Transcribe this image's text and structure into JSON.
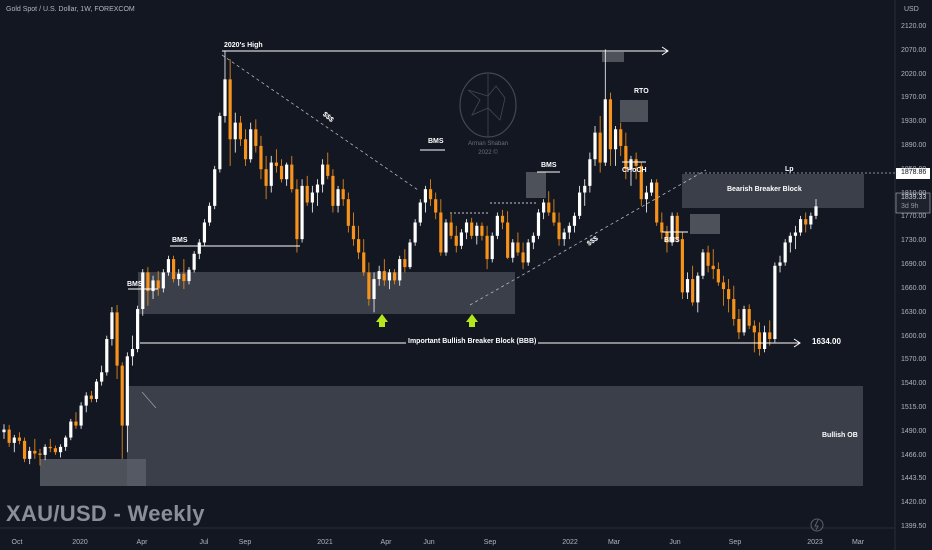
{
  "header": {
    "title": "Gold Spot / U.S. Dollar, 1W, FOREXCOM"
  },
  "watermark": "XAU/USD - Weekly",
  "axis": {
    "currency": "USD",
    "y_ticks": [
      "2120.00",
      "2070.00",
      "2020.00",
      "1970.00",
      "1930.00",
      "1890.00",
      "1850.00",
      "1810.00",
      "1770.00",
      "1730.00",
      "1690.00",
      "1660.00",
      "1630.00",
      "1600.00",
      "1570.00",
      "1540.00",
      "1515.00",
      "1490.00",
      "1466.00",
      "1443.50",
      "1420.00",
      "1399.50"
    ],
    "x_ticks": [
      "Oct",
      "2020",
      "Apr",
      "Jul",
      "Sep",
      "2021",
      "Apr",
      "Jun",
      "Sep",
      "2022",
      "Mar",
      "Jun",
      "Sep",
      "2023",
      "Mar"
    ]
  },
  "price_labels": {
    "level": "1878.86",
    "last": "1839.33",
    "countdown": "3d 9h"
  },
  "annotations": {
    "high_2020": "2020's High",
    "bms": "BMS",
    "sss": "$$$",
    "rto": "RTO",
    "choch": "CHoCH",
    "lp": "Lp",
    "bearish_block": "Bearish Breaker Block",
    "bullish_block": "Important Bullish Breaker Block (BBB)",
    "level_1634": "1634.00",
    "bullish_ob": "Bullish OB"
  },
  "logo": {
    "name": "Arman Shaban",
    "year": "2022 ©"
  },
  "colors": {
    "bull": "#ffffff",
    "bear": "#f7931a",
    "background": "#131722",
    "zone": "#4a4e58"
  },
  "chart_data": {
    "type": "candlestick",
    "title": "Gold Spot / U.S. Dollar, 1W, FOREXCOM",
    "symbol": "XAU/USD",
    "timeframe": "Weekly",
    "ylim": [
      1399.5,
      2120
    ],
    "last_price": 1839.33,
    "horizontal_levels": [
      1878.86,
      1634.0
    ],
    "series": [
      {
        "name": "",
        "ohlc": [
          [
            1500,
            1512,
            1490,
            1504
          ],
          [
            1504,
            1511,
            1478,
            1484
          ],
          [
            1484,
            1496,
            1470,
            1492
          ],
          [
            1492,
            1500,
            1482,
            1487
          ],
          [
            1487,
            1492,
            1455,
            1460
          ],
          [
            1460,
            1478,
            1452,
            1472
          ],
          [
            1472,
            1490,
            1460,
            1468
          ],
          [
            1468,
            1475,
            1450,
            1466
          ],
          [
            1466,
            1482,
            1458,
            1478
          ],
          [
            1478,
            1490,
            1470,
            1476
          ],
          [
            1476,
            1480,
            1466,
            1470
          ],
          [
            1470,
            1482,
            1462,
            1478
          ],
          [
            1478,
            1495,
            1472,
            1492
          ],
          [
            1492,
            1520,
            1488,
            1516
          ],
          [
            1516,
            1530,
            1505,
            1510
          ],
          [
            1510,
            1545,
            1505,
            1540
          ],
          [
            1540,
            1560,
            1530,
            1555
          ],
          [
            1555,
            1562,
            1545,
            1550
          ],
          [
            1550,
            1580,
            1545,
            1576
          ],
          [
            1576,
            1600,
            1570,
            1590
          ],
          [
            1590,
            1645,
            1585,
            1640
          ],
          [
            1640,
            1688,
            1630,
            1680
          ],
          [
            1680,
            1691,
            1580,
            1600
          ],
          [
            1600,
            1605,
            1460,
            1510
          ],
          [
            1510,
            1620,
            1470,
            1614
          ],
          [
            1614,
            1645,
            1600,
            1625
          ],
          [
            1625,
            1690,
            1620,
            1685
          ],
          [
            1685,
            1745,
            1675,
            1740
          ],
          [
            1740,
            1748,
            1690,
            1712
          ],
          [
            1712,
            1735,
            1700,
            1728
          ],
          [
            1728,
            1742,
            1705,
            1716
          ],
          [
            1716,
            1745,
            1710,
            1740
          ],
          [
            1740,
            1765,
            1735,
            1760
          ],
          [
            1760,
            1765,
            1725,
            1730
          ],
          [
            1730,
            1745,
            1720,
            1738
          ],
          [
            1738,
            1760,
            1715,
            1727
          ],
          [
            1727,
            1748,
            1722,
            1744
          ],
          [
            1744,
            1772,
            1740,
            1768
          ],
          [
            1768,
            1790,
            1760,
            1785
          ],
          [
            1785,
            1820,
            1780,
            1815
          ],
          [
            1815,
            1845,
            1810,
            1840
          ],
          [
            1840,
            1900,
            1835,
            1895
          ],
          [
            1895,
            1980,
            1890,
            1975
          ],
          [
            1975,
            2072,
            1965,
            2030
          ],
          [
            2030,
            2060,
            1900,
            1940
          ],
          [
            1940,
            1980,
            1920,
            1965
          ],
          [
            1965,
            1975,
            1930,
            1940
          ],
          [
            1940,
            1955,
            1900,
            1910
          ],
          [
            1910,
            1965,
            1905,
            1955
          ],
          [
            1955,
            1970,
            1920,
            1930
          ],
          [
            1930,
            1945,
            1880,
            1895
          ],
          [
            1895,
            1915,
            1850,
            1870
          ],
          [
            1870,
            1915,
            1860,
            1905
          ],
          [
            1905,
            1925,
            1890,
            1900
          ],
          [
            1900,
            1910,
            1875,
            1880
          ],
          [
            1880,
            1905,
            1870,
            1902
          ],
          [
            1902,
            1915,
            1860,
            1865
          ],
          [
            1865,
            1880,
            1770,
            1790
          ],
          [
            1790,
            1880,
            1785,
            1870
          ],
          [
            1870,
            1885,
            1840,
            1845
          ],
          [
            1845,
            1870,
            1830,
            1860
          ],
          [
            1860,
            1880,
            1840,
            1872
          ],
          [
            1872,
            1910,
            1860,
            1902
          ],
          [
            1902,
            1920,
            1880,
            1885
          ],
          [
            1885,
            1895,
            1830,
            1840
          ],
          [
            1840,
            1870,
            1830,
            1865
          ],
          [
            1865,
            1880,
            1840,
            1850
          ],
          [
            1850,
            1860,
            1800,
            1810
          ],
          [
            1810,
            1830,
            1780,
            1790
          ],
          [
            1790,
            1810,
            1760,
            1770
          ],
          [
            1770,
            1790,
            1735,
            1740
          ],
          [
            1740,
            1755,
            1690,
            1700
          ],
          [
            1700,
            1740,
            1680,
            1730
          ],
          [
            1730,
            1750,
            1720,
            1742
          ],
          [
            1742,
            1760,
            1720,
            1728
          ],
          [
            1728,
            1745,
            1715,
            1740
          ],
          [
            1740,
            1745,
            1722,
            1728
          ],
          [
            1728,
            1765,
            1720,
            1760
          ],
          [
            1760,
            1775,
            1740,
            1748
          ],
          [
            1748,
            1790,
            1745,
            1785
          ],
          [
            1785,
            1820,
            1780,
            1815
          ],
          [
            1815,
            1850,
            1810,
            1845
          ],
          [
            1845,
            1870,
            1830,
            1865
          ],
          [
            1865,
            1880,
            1840,
            1850
          ],
          [
            1850,
            1860,
            1820,
            1830
          ],
          [
            1830,
            1850,
            1765,
            1770
          ],
          [
            1770,
            1820,
            1765,
            1815
          ],
          [
            1815,
            1828,
            1790,
            1795
          ],
          [
            1795,
            1810,
            1770,
            1780
          ],
          [
            1780,
            1805,
            1775,
            1800
          ],
          [
            1800,
            1820,
            1790,
            1815
          ],
          [
            1815,
            1822,
            1790,
            1795
          ],
          [
            1795,
            1815,
            1782,
            1810
          ],
          [
            1810,
            1815,
            1788,
            1795
          ],
          [
            1795,
            1810,
            1745,
            1760
          ],
          [
            1760,
            1800,
            1755,
            1795
          ],
          [
            1795,
            1830,
            1790,
            1825
          ],
          [
            1825,
            1834,
            1805,
            1815
          ],
          [
            1815,
            1832,
            1760,
            1762
          ],
          [
            1762,
            1790,
            1755,
            1785
          ],
          [
            1785,
            1800,
            1765,
            1770
          ],
          [
            1770,
            1785,
            1745,
            1755
          ],
          [
            1755,
            1790,
            1750,
            1785
          ],
          [
            1785,
            1800,
            1775,
            1795
          ],
          [
            1795,
            1835,
            1790,
            1830
          ],
          [
            1830,
            1850,
            1820,
            1845
          ],
          [
            1845,
            1862,
            1825,
            1830
          ],
          [
            1830,
            1850,
            1810,
            1815
          ],
          [
            1815,
            1830,
            1780,
            1790
          ],
          [
            1790,
            1806,
            1780,
            1800
          ],
          [
            1800,
            1815,
            1790,
            1810
          ],
          [
            1810,
            1830,
            1800,
            1825
          ],
          [
            1825,
            1870,
            1820,
            1860
          ],
          [
            1860,
            1880,
            1840,
            1870
          ],
          [
            1870,
            1920,
            1860,
            1910
          ],
          [
            1910,
            1960,
            1900,
            1950
          ],
          [
            1950,
            1975,
            1890,
            1905
          ],
          [
            1905,
            2075,
            1900,
            2000
          ],
          [
            2000,
            2010,
            1900,
            1925
          ],
          [
            1925,
            1960,
            1900,
            1955
          ],
          [
            1955,
            1965,
            1915,
            1930
          ],
          [
            1930,
            1950,
            1880,
            1895
          ],
          [
            1895,
            1915,
            1870,
            1910
          ],
          [
            1910,
            1920,
            1880,
            1900
          ],
          [
            1900,
            1905,
            1840,
            1850
          ],
          [
            1850,
            1870,
            1830,
            1860
          ],
          [
            1860,
            1880,
            1855,
            1875
          ],
          [
            1875,
            1880,
            1810,
            1815
          ],
          [
            1815,
            1830,
            1790,
            1800
          ],
          [
            1800,
            1810,
            1770,
            1785
          ],
          [
            1785,
            1830,
            1780,
            1825
          ],
          [
            1825,
            1830,
            1785,
            1790
          ],
          [
            1790,
            1800,
            1700,
            1710
          ],
          [
            1710,
            1740,
            1700,
            1730
          ],
          [
            1730,
            1750,
            1690,
            1695
          ],
          [
            1695,
            1740,
            1680,
            1735
          ],
          [
            1735,
            1775,
            1730,
            1770
          ],
          [
            1770,
            1780,
            1740,
            1750
          ],
          [
            1750,
            1775,
            1730,
            1745
          ],
          [
            1745,
            1755,
            1720,
            1725
          ],
          [
            1725,
            1735,
            1690,
            1715
          ],
          [
            1715,
            1730,
            1680,
            1700
          ],
          [
            1700,
            1720,
            1660,
            1670
          ],
          [
            1670,
            1685,
            1640,
            1650
          ],
          [
            1650,
            1690,
            1645,
            1685
          ],
          [
            1685,
            1692,
            1655,
            1660
          ],
          [
            1660,
            1668,
            1620,
            1650
          ],
          [
            1650,
            1665,
            1615,
            1625
          ],
          [
            1625,
            1660,
            1620,
            1650
          ],
          [
            1650,
            1668,
            1630,
            1640
          ],
          [
            1640,
            1755,
            1635,
            1750
          ],
          [
            1750,
            1765,
            1740,
            1755
          ],
          [
            1755,
            1790,
            1750,
            1785
          ],
          [
            1785,
            1800,
            1770,
            1795
          ],
          [
            1795,
            1810,
            1775,
            1800
          ],
          [
            1800,
            1825,
            1795,
            1820
          ],
          [
            1820,
            1830,
            1800,
            1812
          ],
          [
            1812,
            1830,
            1805,
            1825
          ],
          [
            1825,
            1850,
            1820,
            1839.33
          ]
        ]
      }
    ],
    "zones": [
      {
        "label": "Bearish Breaker Block",
        "from": 1835,
        "to": 1878
      },
      {
        "label": "Important Bullish Breaker Block (BBB)",
        "from": 1675,
        "to": 1730
      },
      {
        "label": "Bullish OB",
        "from": 1455,
        "to": 1565
      }
    ]
  }
}
